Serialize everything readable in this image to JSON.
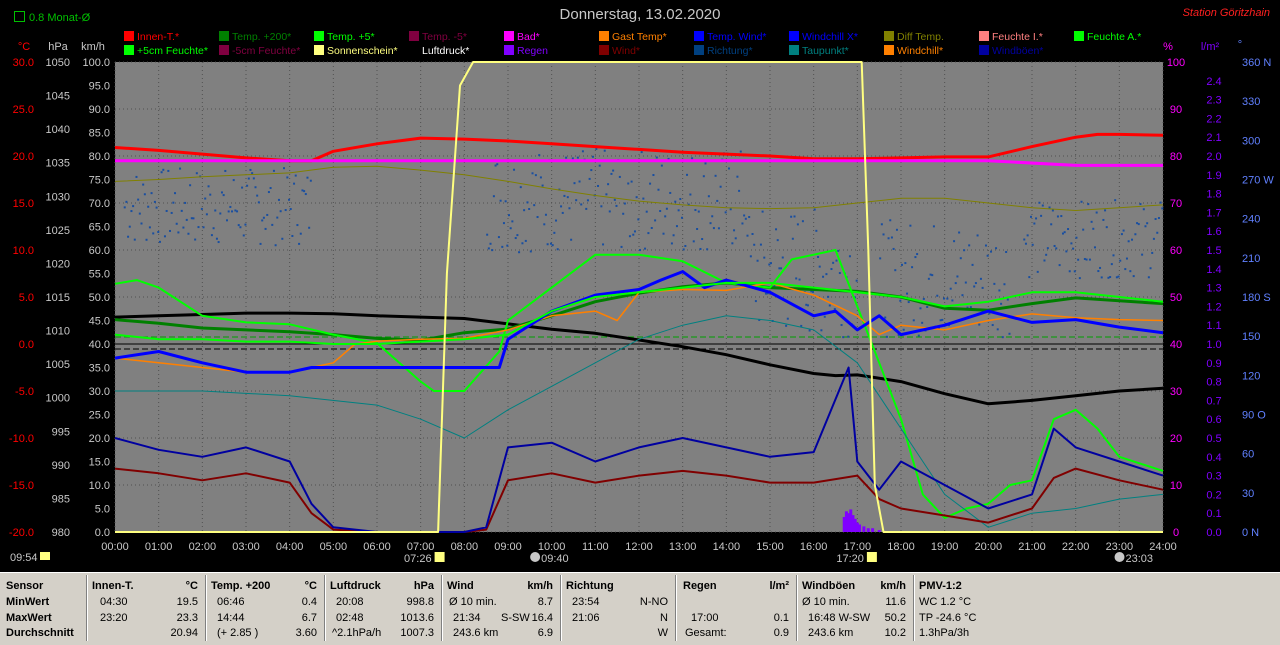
{
  "header": {
    "title": "Donnerstag, 13.02.2020",
    "station": "Station Göritzhain",
    "rain_total": "0.8 Monat-Ø"
  },
  "legend": [
    {
      "label": "Innen-T.*",
      "color": "#ff0000"
    },
    {
      "label": "Temp. +200*",
      "color": "#008000"
    },
    {
      "label": "Temp. +5*",
      "color": "#00ff00"
    },
    {
      "label": "Temp. -5*",
      "color": "#800040"
    },
    {
      "label": "Bad*",
      "color": "#ff00ff"
    },
    {
      "label": "Gast Temp*",
      "color": "#ff8000"
    },
    {
      "label": "Temp. Wind*",
      "color": "#0000ff"
    },
    {
      "label": "Windchill X*",
      "color": "#0000ff"
    },
    {
      "label": "Diff Temp.",
      "color": "#808000"
    },
    {
      "label": "Feuchte I.*",
      "color": "#ff8080"
    },
    {
      "label": "Feuchte A.*",
      "color": "#00ff00"
    },
    {
      "label": "+5cm Feuchte*",
      "color": "#00ff00"
    },
    {
      "label": "-5cm Feuchte*",
      "color": "#800040"
    },
    {
      "label": "Sonnenschein*",
      "color": "#ffff80"
    },
    {
      "label": "Luftdruck*",
      "color": "#000000"
    },
    {
      "label": "Regen",
      "color": "#8000ff"
    },
    {
      "label": "Wind*",
      "color": "#800000"
    },
    {
      "label": "Richtung*",
      "color": "#004080"
    },
    {
      "label": "Taupunkt*",
      "color": "#008080"
    },
    {
      "label": "Windchill*",
      "color": "#ff8000"
    },
    {
      "label": "Windböen*",
      "color": "#0000a0"
    }
  ],
  "chart_data": {
    "type": "line",
    "title": "Donnerstag, 13.02.2020",
    "x_ticks": [
      "00:00",
      "01:00",
      "02:00",
      "03:00",
      "04:00",
      "05:00",
      "06:00",
      "07:00",
      "08:00",
      "09:00",
      "10:00",
      "11:00",
      "12:00",
      "13:00",
      "14:00",
      "15:00",
      "16:00",
      "17:00",
      "18:00",
      "19:00",
      "20:00",
      "21:00",
      "22:00",
      "23:00",
      "24:00"
    ],
    "axes": {
      "temp_c": {
        "unit": "°C",
        "ticks": [
          "30.0",
          "25.0",
          "20.0",
          "15.0",
          "10.0",
          "5.0",
          "0.0",
          "-5.0",
          "-10.0",
          "-15.0",
          "-20.0"
        ],
        "range": [
          -20,
          30
        ],
        "color": "#ff0000"
      },
      "pressure_hpa": {
        "unit": "hPa",
        "ticks": [
          "1050",
          "1045",
          "1040",
          "1035",
          "1030",
          "1025",
          "1020",
          "1015",
          "1010",
          "1005",
          "1000",
          "995",
          "990",
          "985",
          "980"
        ],
        "range": [
          980,
          1050
        ],
        "color": "#c8c8c8"
      },
      "wind_kmh": {
        "unit": "km/h",
        "ticks": [
          "100.0",
          "95.0",
          "90.0",
          "85.0",
          "80.0",
          "75.0",
          "70.0",
          "65.0",
          "60.0",
          "55.0",
          "50.0",
          "45.0",
          "40.0",
          "35.0",
          "30.0",
          "25.0",
          "20.0",
          "15.0",
          "10.0",
          "5.0",
          "0.0"
        ],
        "range": [
          0,
          100
        ],
        "color": "#c8c8c8"
      },
      "humidity_pct": {
        "unit": "%",
        "ticks": [
          "100",
          "90",
          "80",
          "70",
          "60",
          "50",
          "40",
          "30",
          "20",
          "10",
          "0"
        ],
        "range": [
          0,
          100
        ],
        "color": "#ff00ff"
      },
      "rain_lm2": {
        "unit": "l/m²",
        "ticks": [
          "2.4",
          "2.3",
          "2.2",
          "2.1",
          "2.0",
          "1.9",
          "1.8",
          "1.7",
          "1.6",
          "1.5",
          "1.4",
          "1.3",
          "1.2",
          "1.1",
          "1.0",
          "0.9",
          "0.8",
          "0.7",
          "0.6",
          "0.5",
          "0.4",
          "0.3",
          "0.2",
          "0.1",
          "0.0"
        ],
        "range": [
          0,
          2.5
        ],
        "color": "#8000ff"
      },
      "direction_deg": {
        "unit": "°",
        "ticks": [
          "360 N",
          "330",
          "300",
          "270 W",
          "240",
          "210",
          "180 S",
          "150",
          "120",
          "90 O",
          "60",
          "30",
          "0 N"
        ],
        "range": [
          0,
          360
        ],
        "color": "#6080ff"
      }
    },
    "series": [
      {
        "name": "Innen-T.*",
        "axis": "temp_c",
        "color": "#ff0000",
        "x": [
          0,
          1,
          2,
          3,
          4,
          4.5,
          5,
          6,
          7,
          8,
          9,
          10,
          11,
          12,
          13,
          14,
          15,
          16,
          17,
          18,
          19,
          20,
          21,
          22,
          22.5,
          23,
          24
        ],
        "y": [
          20.9,
          20.6,
          20.2,
          19.8,
          19.5,
          19.5,
          20.5,
          21.3,
          21.9,
          21.8,
          21.6,
          21.3,
          21.0,
          20.7,
          20.4,
          20.2,
          20.0,
          19.7,
          19.7,
          19.8,
          19.9,
          19.9,
          21.0,
          22.0,
          22.3,
          22.3,
          22.2
        ]
      },
      {
        "name": "Feuchte I.*",
        "axis": "humidity_pct",
        "color": "#ff00ff",
        "x": [
          0,
          2,
          4,
          6,
          8,
          10,
          12,
          14,
          16,
          18,
          20,
          22,
          24
        ],
        "y": [
          79,
          79,
          79,
          79,
          79,
          79,
          79,
          79,
          79,
          79,
          79,
          78,
          78
        ]
      },
      {
        "name": "Diff Temp.",
        "axis": "temp_c",
        "color": "#808000",
        "x": [
          0,
          1,
          2,
          3,
          4,
          5,
          6,
          7,
          8,
          9,
          10,
          11,
          12,
          13,
          14,
          15,
          16,
          17,
          18,
          19,
          20,
          21,
          22,
          23,
          24
        ],
        "y": [
          17.3,
          17.5,
          17.8,
          18.0,
          18.2,
          18.8,
          18.9,
          18.5,
          18.0,
          17.3,
          16.5,
          15.8,
          15.2,
          14.8,
          14.5,
          14.4,
          14.5,
          15.0,
          15.5,
          15.5,
          15.0,
          14.5,
          14.2,
          14.5,
          14.8
        ]
      },
      {
        "name": "Luftdruck*",
        "axis": "pressure_hpa",
        "color": "#000000",
        "x": [
          0,
          1,
          2,
          3,
          4,
          5,
          6,
          7,
          8,
          9,
          10,
          11,
          12,
          13,
          14,
          15,
          16,
          16.5,
          17,
          18,
          19,
          20,
          21,
          22,
          23,
          24
        ],
        "y": [
          1012.0,
          1012.2,
          1012.4,
          1012.6,
          1012.6,
          1012.5,
          1012.2,
          1012.0,
          1011.8,
          1011.0,
          1010.2,
          1009.6,
          1008.6,
          1007.6,
          1006.4,
          1004.9,
          1003.6,
          1003.3,
          1003.4,
          1002.4,
          1000.6,
          999.1,
          999.6,
          1000.3,
          1001.0,
          1001.4
        ]
      },
      {
        "name": "Temp. +200*",
        "axis": "temp_c",
        "color": "#008000",
        "x": [
          0,
          1,
          2,
          3,
          4,
          5,
          6,
          7,
          8,
          9,
          10,
          11,
          12,
          13,
          14,
          15,
          16,
          17,
          18,
          19,
          20,
          21,
          22,
          23,
          24
        ],
        "y": [
          2.6,
          2.2,
          1.7,
          1.5,
          1.3,
          1.0,
          0.6,
          0.4,
          1.2,
          1.6,
          3.0,
          4.5,
          5.4,
          6.1,
          6.5,
          6.0,
          5.8,
          5.6,
          5.0,
          3.8,
          3.6,
          4.3,
          4.9,
          4.6,
          4.3
        ]
      },
      {
        "name": "Temp. +5*",
        "axis": "temp_c",
        "color": "#00ff00",
        "x": [
          0,
          0.5,
          1,
          2,
          3,
          4,
          5,
          6,
          7,
          7.3,
          8,
          8.8,
          9,
          10,
          11,
          12,
          13,
          14,
          15,
          15.5,
          16,
          16.5,
          17,
          17.5,
          18,
          18.5,
          19,
          19.5,
          20,
          20.5,
          21,
          21.5,
          22,
          22.5,
          23,
          24
        ],
        "y": [
          6.4,
          6.8,
          6.0,
          3.0,
          2.3,
          2.1,
          1.0,
          0.1,
          -4.0,
          -5.0,
          -5.0,
          -0.8,
          2.5,
          6.0,
          9.5,
          9.5,
          8.8,
          6.5,
          6.0,
          9.0,
          9.5,
          10.0,
          4.0,
          -2.0,
          -8.0,
          -16.0,
          -18.5,
          -17.5,
          -17.0,
          -15.0,
          -14.5,
          -8.0,
          -7.0,
          -9.0,
          -12.0,
          -13.5
        ]
      },
      {
        "name": "Gast Temp*",
        "axis": "temp_c",
        "color": "#ff8000",
        "x": [
          0,
          1,
          2,
          3,
          4,
          5,
          5.5,
          6,
          7,
          8,
          9,
          10,
          11,
          11.5,
          12,
          13,
          14,
          15,
          16,
          17,
          17.5,
          18,
          19,
          20,
          21,
          22,
          23,
          24
        ],
        "y": [
          -1.5,
          -2.0,
          -2.5,
          -3.0,
          -3.0,
          -2.0,
          0.0,
          0.3,
          0.5,
          0.6,
          1.5,
          3.0,
          3.5,
          2.5,
          5.5,
          5.8,
          5.7,
          6.5,
          5.2,
          3.0,
          1.0,
          2.0,
          1.5,
          2.5,
          3.2,
          2.8,
          2.6,
          2.5
        ]
      },
      {
        "name": "Temp. Wind*",
        "axis": "temp_c",
        "color": "#0000ff",
        "x": [
          0,
          1,
          2,
          3,
          4,
          4.5,
          5,
          6,
          7,
          8,
          8.8,
          9,
          10,
          11,
          12,
          12.5,
          13,
          13.5,
          14,
          15,
          16,
          16.5,
          17,
          17.5,
          18,
          19,
          20,
          21,
          22,
          23,
          24
        ],
        "y": [
          -1.5,
          -0.8,
          -2.0,
          -3.0,
          -3.0,
          -2.5,
          -2.5,
          -2.5,
          -2.5,
          -2.5,
          -2.5,
          0.5,
          3.5,
          5.2,
          5.8,
          6.8,
          7.7,
          6.0,
          6.8,
          5.5,
          3.0,
          3.5,
          1.5,
          3.0,
          1.0,
          2.0,
          3.5,
          2.3,
          2.6,
          1.8,
          1.2
        ]
      },
      {
        "name": "Feuchte A.*",
        "axis": "humidity_pct",
        "color": "#00ff00",
        "x": [
          0,
          1,
          2,
          3,
          4,
          5,
          6,
          7,
          8,
          9,
          10,
          11,
          12,
          13,
          14,
          15,
          16,
          17,
          18,
          19,
          20,
          21,
          22,
          23,
          24
        ],
        "y": [
          42,
          41,
          41,
          40.5,
          40.5,
          40,
          40,
          40.5,
          41,
          42,
          47,
          50,
          51,
          52,
          53,
          53,
          52,
          51,
          50,
          48,
          49,
          51,
          51,
          50,
          49
        ]
      },
      {
        "name": "Taupunkt*",
        "axis": "temp_c",
        "color": "#008080",
        "x": [
          0,
          2,
          4,
          6,
          7,
          8,
          9,
          10,
          11,
          12,
          13,
          14,
          15,
          16,
          17,
          18,
          19,
          20,
          21,
          22,
          23,
          24
        ],
        "y": [
          -5.0,
          -5.0,
          -5.5,
          -6.5,
          -8.0,
          -10.0,
          -7.0,
          -4.5,
          -2.0,
          0.5,
          2.0,
          3.0,
          2.5,
          1.5,
          -2.0,
          -9.0,
          -16.0,
          -19.5,
          -18.0,
          -17.5,
          -16.5,
          -16.0
        ]
      },
      {
        "name": "Wind*",
        "axis": "wind_kmh",
        "color": "#800000",
        "x": [
          0,
          1,
          2,
          3,
          4,
          4.5,
          5,
          6,
          7,
          8,
          8.5,
          9,
          10,
          11,
          12,
          13,
          14,
          15,
          16,
          17,
          17.5,
          18,
          19,
          20,
          21,
          21.5,
          22,
          23,
          24
        ],
        "y": [
          13.5,
          12.5,
          11.0,
          12.5,
          10.5,
          4.0,
          0.5,
          0.0,
          0.0,
          0.0,
          0.5,
          11.0,
          12.5,
          10.5,
          12.0,
          13.0,
          12.0,
          10.5,
          10.5,
          12.0,
          7.0,
          5.0,
          3.5,
          2.0,
          5.0,
          11.5,
          13.5,
          11.0,
          9.0
        ]
      },
      {
        "name": "Windböen*",
        "axis": "wind_kmh",
        "color": "#0000a0",
        "x": [
          0,
          1,
          2,
          3,
          4,
          4.5,
          5,
          6,
          7,
          8,
          8.5,
          9,
          10,
          11,
          12,
          13,
          14,
          15,
          16,
          16.8,
          17,
          17.5,
          18,
          19,
          20,
          21,
          21.5,
          22,
          23,
          24
        ],
        "y": [
          20.0,
          17.5,
          16.0,
          18.0,
          15.0,
          6.0,
          1.0,
          0.0,
          0.0,
          0.0,
          1.0,
          18.0,
          19.0,
          15.0,
          18.0,
          20.0,
          18.0,
          16.0,
          17.0,
          35.0,
          15.0,
          9.0,
          15.0,
          10.0,
          5.0,
          8.0,
          22.0,
          18.0,
          15.0,
          12.0
        ]
      },
      {
        "name": "Sonnenschein*",
        "axis": "humidity_pct",
        "color": "#ffff80",
        "x": [
          0,
          7.4,
          7.6,
          7.9,
          8.2,
          9,
          10,
          11,
          12,
          13,
          14,
          15,
          16,
          17.1,
          17.25,
          17.4,
          17.6,
          24
        ],
        "y": [
          0,
          0,
          55,
          95,
          100,
          100,
          100,
          100,
          100,
          100,
          100,
          100,
          100,
          100,
          60,
          10,
          0,
          0
        ]
      }
    ],
    "annotations": {
      "sunrise": "07:26",
      "sunset": "17:20",
      "moon_rise": "09:40",
      "moon_set": "23:03",
      "left_marker": "09:54"
    }
  },
  "stats": {
    "row_labels": [
      "Sensor",
      "MinWert",
      "MaxWert",
      "Durchschnitt"
    ],
    "innen": {
      "header": "Innen-T.",
      "unit": "°C",
      "rows": [
        [
          "04:30",
          "19.5"
        ],
        [
          "23:20",
          "23.3"
        ],
        [
          "",
          "20.94"
        ]
      ]
    },
    "temp200": {
      "header": "Temp. +200",
      "unit": "°C",
      "rows": [
        [
          "06:46",
          "0.4"
        ],
        [
          "14:44",
          "6.7"
        ],
        [
          "(+ 2.85 )",
          "3.60"
        ]
      ]
    },
    "luftdruck": {
      "header": "Luftdruck",
      "unit": "hPa",
      "rows": [
        [
          "20:08",
          "998.8"
        ],
        [
          "02:48",
          "1013.6"
        ],
        [
          "^2.1hPa/h",
          "1007.3"
        ]
      ]
    },
    "wind": {
      "header": "Wind",
      "unit": "km/h",
      "rows": [
        [
          "Ø 10 min.",
          "",
          "8.7"
        ],
        [
          "21:34",
          "S-SW",
          "16.4"
        ],
        [
          "243.6 km",
          "",
          "6.9"
        ]
      ]
    },
    "richtung": {
      "header": "Richtung",
      "rows": [
        [
          "23:54",
          "N-NO"
        ],
        [
          "21:06",
          "N"
        ],
        [
          "",
          "W"
        ]
      ]
    },
    "regen": {
      "header": "Regen",
      "unit": "l/m²",
      "rows": [
        [
          "",
          ""
        ],
        [
          "17:00",
          "0.1"
        ],
        [
          "Gesamt:",
          "0.9"
        ]
      ]
    },
    "windboeen": {
      "header": "Windböen",
      "unit": "km/h",
      "rows": [
        [
          "Ø 10 min.",
          "11.6"
        ],
        [
          "16:48 W-SW",
          "50.2"
        ],
        [
          "243.6 km",
          "10.2"
        ]
      ]
    },
    "pmv": {
      "header": "PMV-1:2",
      "rows": [
        "WC 1.2 °C",
        "TP -24.6 °C",
        "1.3hPa/3h"
      ]
    }
  }
}
